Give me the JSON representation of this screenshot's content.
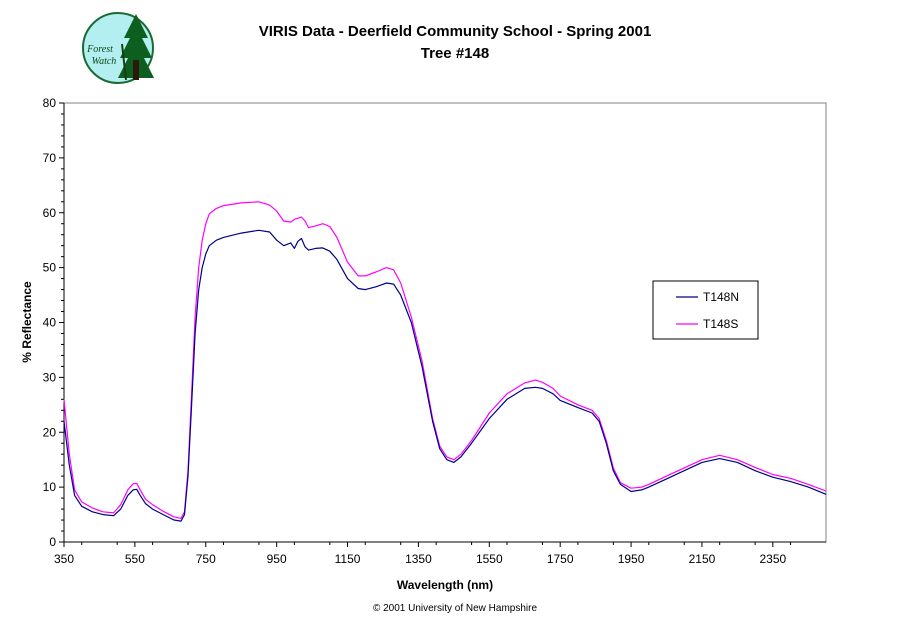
{
  "chart_data": {
    "type": "line",
    "title": [
      "VIRIS Data - Deerfield Community School - Spring 2001",
      "Tree #148"
    ],
    "xlabel": "Wavelength (nm)",
    "ylabel": "% Reflectance",
    "xlim": [
      350,
      2500
    ],
    "ylim": [
      0,
      80
    ],
    "xticks": [
      350,
      550,
      750,
      950,
      1150,
      1350,
      1550,
      1750,
      1950,
      2150,
      2350
    ],
    "yticks": [
      0,
      10,
      20,
      30,
      40,
      50,
      60,
      70,
      80
    ],
    "grid": false,
    "legend_position": "right",
    "series": [
      {
        "name": "T148N",
        "color": "#00008b",
        "x": [
          350,
          365,
          380,
          400,
          430,
          460,
          490,
          510,
          530,
          545,
          555,
          565,
          580,
          600,
          630,
          660,
          680,
          690,
          700,
          710,
          720,
          730,
          740,
          750,
          760,
          780,
          800,
          850,
          900,
          930,
          950,
          970,
          990,
          1000,
          1010,
          1020,
          1030,
          1040,
          1060,
          1080,
          1100,
          1120,
          1150,
          1180,
          1200,
          1230,
          1260,
          1280,
          1300,
          1330,
          1360,
          1390,
          1410,
          1430,
          1450,
          1470,
          1500,
          1550,
          1600,
          1650,
          1680,
          1700,
          1730,
          1750,
          1800,
          1840,
          1860,
          1880,
          1900,
          1920,
          1950,
          1980,
          2000,
          2050,
          2100,
          2150,
          2200,
          2250,
          2300,
          2350,
          2400,
          2450,
          2500
        ],
        "y": [
          22,
          14,
          8.5,
          6.5,
          5.5,
          5,
          4.8,
          6,
          8.5,
          9.5,
          9.6,
          8.5,
          7,
          6,
          5,
          4,
          3.8,
          5,
          12,
          25,
          38,
          46,
          50,
          52.5,
          54,
          55,
          55.5,
          56.3,
          56.8,
          56.5,
          55,
          54,
          54.5,
          53.5,
          54.8,
          55.3,
          53.8,
          53.2,
          53.5,
          53.6,
          53,
          51.5,
          48,
          46.2,
          46,
          46.5,
          47.2,
          47,
          45,
          40,
          32,
          22,
          17,
          15,
          14.5,
          15.5,
          18,
          22.5,
          26,
          28,
          28.2,
          28,
          27,
          25.8,
          24.5,
          23.5,
          22,
          18,
          13,
          10.5,
          9.2,
          9.5,
          10,
          11.5,
          13,
          14.5,
          15.2,
          14.5,
          13,
          11.8,
          11,
          10,
          8.7
        ]
      },
      {
        "name": "T148S",
        "color": "#ff00ff",
        "x": [
          350,
          365,
          380,
          400,
          430,
          460,
          490,
          510,
          530,
          545,
          555,
          565,
          580,
          600,
          630,
          660,
          680,
          690,
          700,
          710,
          720,
          730,
          740,
          750,
          760,
          780,
          800,
          850,
          900,
          930,
          950,
          970,
          990,
          1000,
          1010,
          1020,
          1030,
          1040,
          1060,
          1080,
          1100,
          1120,
          1150,
          1180,
          1200,
          1230,
          1260,
          1280,
          1300,
          1330,
          1360,
          1390,
          1410,
          1430,
          1450,
          1470,
          1500,
          1550,
          1600,
          1650,
          1680,
          1700,
          1730,
          1750,
          1800,
          1840,
          1860,
          1880,
          1900,
          1920,
          1950,
          1980,
          2000,
          2050,
          2100,
          2150,
          2200,
          2250,
          2300,
          2350,
          2400,
          2450,
          2500
        ],
        "y": [
          26,
          16,
          9.5,
          7.3,
          6.2,
          5.5,
          5.3,
          6.8,
          9.5,
          10.6,
          10.7,
          9.5,
          7.8,
          6.8,
          5.6,
          4.6,
          4.3,
          5.5,
          13,
          27,
          41,
          50,
          55,
          58,
          59.8,
          60.8,
          61.3,
          61.8,
          62,
          61.4,
          60.3,
          58.5,
          58.3,
          58.8,
          59,
          59.2,
          58.5,
          57.3,
          57.6,
          58,
          57.5,
          55.5,
          51,
          48.5,
          48.5,
          49.2,
          50,
          49.6,
          47.2,
          41,
          33,
          22.5,
          17.5,
          15.5,
          15,
          16,
          18.5,
          23.5,
          27,
          29,
          29.5,
          29.1,
          28,
          26.6,
          25,
          24,
          22.5,
          18.5,
          13.5,
          10.8,
          9.8,
          10,
          10.5,
          12,
          13.5,
          15,
          15.8,
          15,
          13.6,
          12.3,
          11.6,
          10.5,
          9.3
        ]
      }
    ]
  },
  "footer": {
    "credit": "© 2001 University of New Hampshire"
  },
  "logo": {
    "text_line1": "Forest",
    "text_line2": "Watch"
  }
}
